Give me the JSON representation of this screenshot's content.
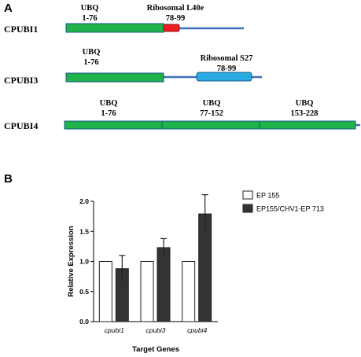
{
  "panel_a": {
    "letter": "A",
    "proteins": [
      {
        "name": "CPUBI1",
        "domains": [
          {
            "label_line1": "UBQ",
            "label_line2": "1-76",
            "color": "#1fb34a"
          },
          {
            "label_line1": "Ribosomal L40e",
            "label_line2": "78-99",
            "color": "#ee1c25"
          }
        ]
      },
      {
        "name": "CPUBI3",
        "domains": [
          {
            "label_line1": "UBQ",
            "label_line2": "1-76",
            "color": "#1fb34a"
          },
          {
            "label_line1": "Ribosomal S27",
            "label_line2": "78-99",
            "color": "#29abe2"
          }
        ]
      },
      {
        "name": "CPUBI4",
        "domains": [
          {
            "label_line1": "UBQ",
            "label_line2": "1-76",
            "color": "#1fb34a"
          },
          {
            "label_line1": "UBQ",
            "label_line2": "77-152",
            "color": "#1fb34a"
          },
          {
            "label_line1": "UBQ",
            "label_line2": "153-228",
            "color": "#1fb34a"
          }
        ]
      }
    ],
    "linker_color": "#3f6fb5"
  },
  "panel_b": {
    "letter": "B"
  },
  "chart_data": {
    "type": "bar",
    "categories": [
      "cpubi1",
      "cpubi3",
      "cpubi4"
    ],
    "series": [
      {
        "name": "EP 155",
        "values": [
          1.0,
          1.0,
          1.0
        ],
        "errors": [
          0,
          0,
          0
        ],
        "color": "#ffffff"
      },
      {
        "name": "EP155/CHV1-EP 713",
        "values": [
          0.88,
          1.23,
          1.79
        ],
        "errors": [
          0.22,
          0.15,
          0.32
        ],
        "color": "#333333"
      }
    ],
    "xlabel": "Target Genes",
    "ylabel": "Relative Expression",
    "ylim": [
      0,
      2.0
    ],
    "yticks": [
      "0.0",
      "0.5",
      "1.0",
      "1.5",
      "2.0"
    ],
    "legend_position": "top-right",
    "grid": false
  }
}
